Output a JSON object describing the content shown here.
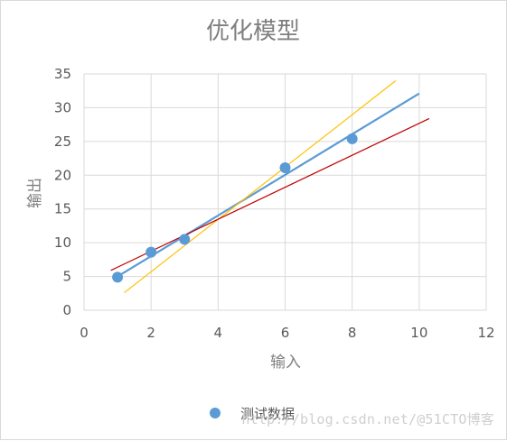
{
  "chart_data": {
    "type": "scatter",
    "title": "优化模型",
    "xlabel": "输入",
    "ylabel": "输出",
    "xlim": [
      0,
      12
    ],
    "ylim": [
      0,
      35
    ],
    "xticks": [
      0,
      2,
      4,
      6,
      8,
      10,
      12
    ],
    "yticks": [
      0,
      5,
      10,
      15,
      20,
      25,
      30,
      35
    ],
    "grid": true,
    "legend_position": "bottom",
    "series": [
      {
        "name": "测试数据",
        "kind": "points",
        "color": "#5b9bd5",
        "x": [
          1,
          2,
          3,
          6,
          8
        ],
        "y": [
          4.9,
          8.6,
          10.5,
          21.1,
          25.4
        ]
      }
    ],
    "lines": [
      {
        "kind": "line",
        "color": "#5b9bd5",
        "x": [
          1,
          10
        ],
        "y": [
          5.0,
          32.1
        ]
      },
      {
        "kind": "line",
        "color": "#ffc000",
        "x": [
          1.2,
          9.3
        ],
        "y": [
          2.6,
          34.0
        ]
      },
      {
        "kind": "line",
        "color": "#c00000",
        "x": [
          0.8,
          10.3
        ],
        "y": [
          5.9,
          28.4
        ]
      }
    ]
  },
  "watermark": "http://blog.csdn.net/@51CTO博客"
}
